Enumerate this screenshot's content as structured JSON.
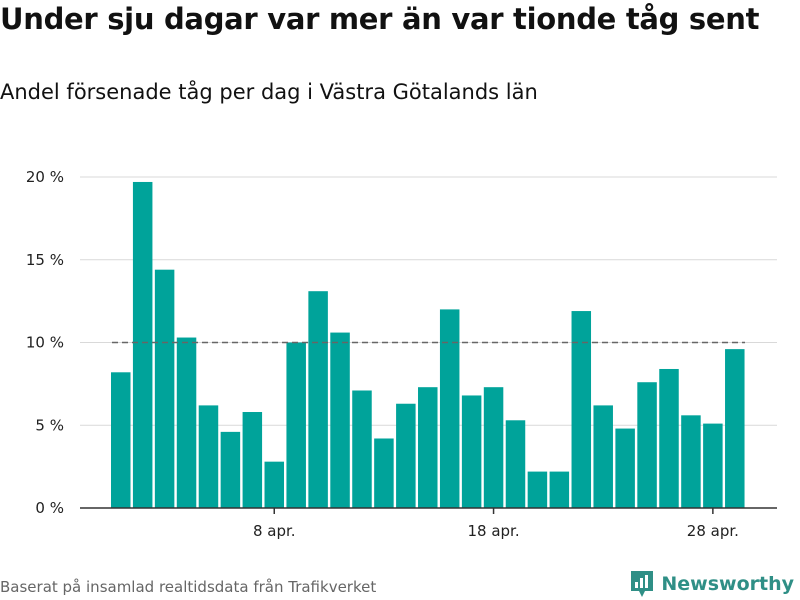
{
  "title": "Under sju dagar var mer än var tionde tåg sent",
  "subtitle": "Andel försenade tåg per dag i Västra Götalands län",
  "footer": "Baserat på insamlad realtidsdata från Trafikverket",
  "brand": {
    "name": "Newsworthy",
    "color": "#2f8f86",
    "icon": "newsworthy-logo-icon"
  },
  "chart_data": {
    "type": "bar",
    "x": [
      "2023-04-01",
      "2023-04-02",
      "2023-04-03",
      "2023-04-04",
      "2023-04-05",
      "2023-04-06",
      "2023-04-07",
      "2023-04-08",
      "2023-04-09",
      "2023-04-10",
      "2023-04-11",
      "2023-04-12",
      "2023-04-13",
      "2023-04-14",
      "2023-04-15",
      "2023-04-16",
      "2023-04-17",
      "2023-04-18",
      "2023-04-19",
      "2023-04-20",
      "2023-04-21",
      "2023-04-22",
      "2023-04-23",
      "2023-04-24",
      "2023-04-25",
      "2023-04-26",
      "2023-04-27",
      "2023-04-28",
      "2023-04-29"
    ],
    "values": [
      8.2,
      19.7,
      14.4,
      10.3,
      6.2,
      4.6,
      5.8,
      2.8,
      10.0,
      13.1,
      10.6,
      7.1,
      4.2,
      6.3,
      7.3,
      12.0,
      6.8,
      7.3,
      5.3,
      2.2,
      2.2,
      11.9,
      6.2,
      4.8,
      7.6,
      8.4,
      5.6,
      5.1,
      9.6
    ],
    "ylim": [
      0,
      20
    ],
    "yticks": [
      0,
      5,
      10,
      15,
      20
    ],
    "ytick_labels": [
      "0 %",
      "5 %",
      "10 %",
      "15 %",
      "20 %"
    ],
    "xticks": [
      {
        "x": "2023-04-08",
        "label": "8 apr."
      },
      {
        "x": "2023-04-18",
        "label": "18 apr."
      },
      {
        "x": "2023-04-28",
        "label": "28 apr."
      }
    ],
    "reference_line": {
      "value": 10,
      "style": "dashed"
    },
    "bar_color": "#00a39a",
    "grid": true
  }
}
